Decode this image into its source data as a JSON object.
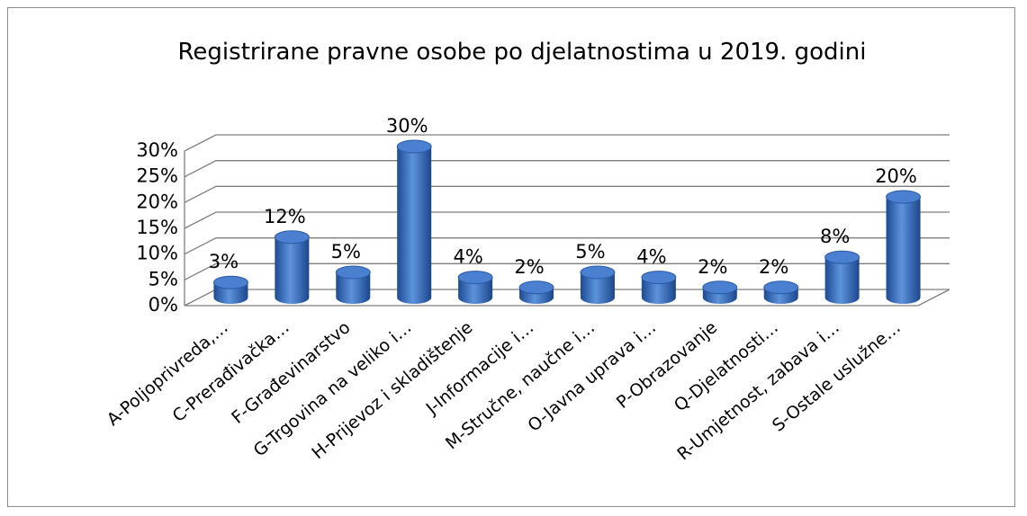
{
  "chart_data": {
    "type": "bar3d",
    "title": "Registrirane pravne osobe po djelatnostima u 2019. godini",
    "categories": [
      "A-Poljoprivreda,…",
      "C-Prerađivačka…",
      "F-Građevinarstvo",
      "G-Trgovina na veliko i…",
      "H-Prijevoz i skladištenje",
      "J-Informacije i…",
      "M-Stručne, naučne i…",
      "O-Javna uprava i…",
      "P-Obrazovanje",
      "Q-Djelatnosti…",
      "R-Umjetnost, zabava i…",
      "S-Ostale uslužne…"
    ],
    "values": [
      3,
      12,
      5,
      30,
      4,
      2,
      5,
      4,
      2,
      2,
      8,
      20
    ],
    "value_labels": [
      "3%",
      "12%",
      "5%",
      "30%",
      "4%",
      "2%",
      "5%",
      "4%",
      "2%",
      "2%",
      "8%",
      "20%"
    ],
    "color": "#3a6fc0",
    "ylim": [
      0,
      30
    ],
    "yticks": [
      {
        "value": 0,
        "label": "0%"
      },
      {
        "value": 5,
        "label": "5%"
      },
      {
        "value": 10,
        "label": "10%"
      },
      {
        "value": 15,
        "label": "15%"
      },
      {
        "value": 20,
        "label": "20%"
      },
      {
        "value": 25,
        "label": "25%"
      },
      {
        "value": 30,
        "label": "30%"
      }
    ],
    "grid": true
  }
}
